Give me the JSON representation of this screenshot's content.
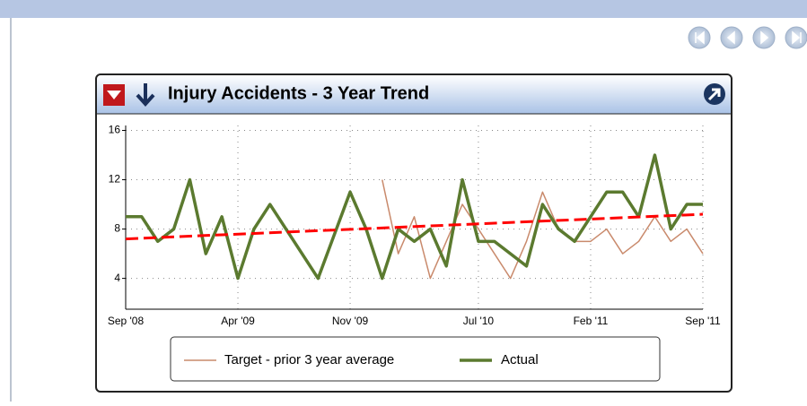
{
  "chart_data": {
    "type": "line",
    "title": "Injury Accidents - 3 Year Trend",
    "categories": [
      "Sep '08",
      null,
      null,
      null,
      null,
      null,
      null,
      "Apr '09",
      null,
      null,
      null,
      null,
      null,
      null,
      "Nov '09",
      null,
      null,
      null,
      null,
      null,
      null,
      null,
      "Jul '10",
      null,
      null,
      null,
      null,
      null,
      null,
      "Feb '11",
      null,
      null,
      null,
      null,
      null,
      null,
      "Sep '11"
    ],
    "series": [
      {
        "name": "Target - prior 3 year average",
        "color": "#c98a6c",
        "values": [
          null,
          null,
          null,
          null,
          null,
          null,
          null,
          null,
          null,
          null,
          null,
          null,
          null,
          null,
          null,
          null,
          12,
          6,
          9,
          4,
          7,
          10,
          8,
          6,
          4,
          7,
          11,
          8,
          7,
          7,
          8,
          6,
          7,
          9,
          7,
          8,
          6
        ]
      },
      {
        "name": "Actual",
        "color": "#5b7a2f",
        "values": [
          9,
          9,
          7,
          8,
          12,
          6,
          9,
          4,
          8,
          10,
          8,
          6,
          4,
          7.5,
          11,
          8,
          4,
          8,
          7,
          8,
          5,
          12,
          7,
          7,
          6,
          5,
          10,
          8,
          7,
          9,
          11,
          11,
          9,
          14,
          8,
          10,
          10
        ]
      }
    ],
    "trendline": {
      "color": "#ff0000",
      "values": [
        7.2,
        9.2
      ]
    },
    "ylim": [
      1.5,
      16.4
    ],
    "yticks": [
      4,
      8,
      12,
      16
    ],
    "grid": true
  }
}
